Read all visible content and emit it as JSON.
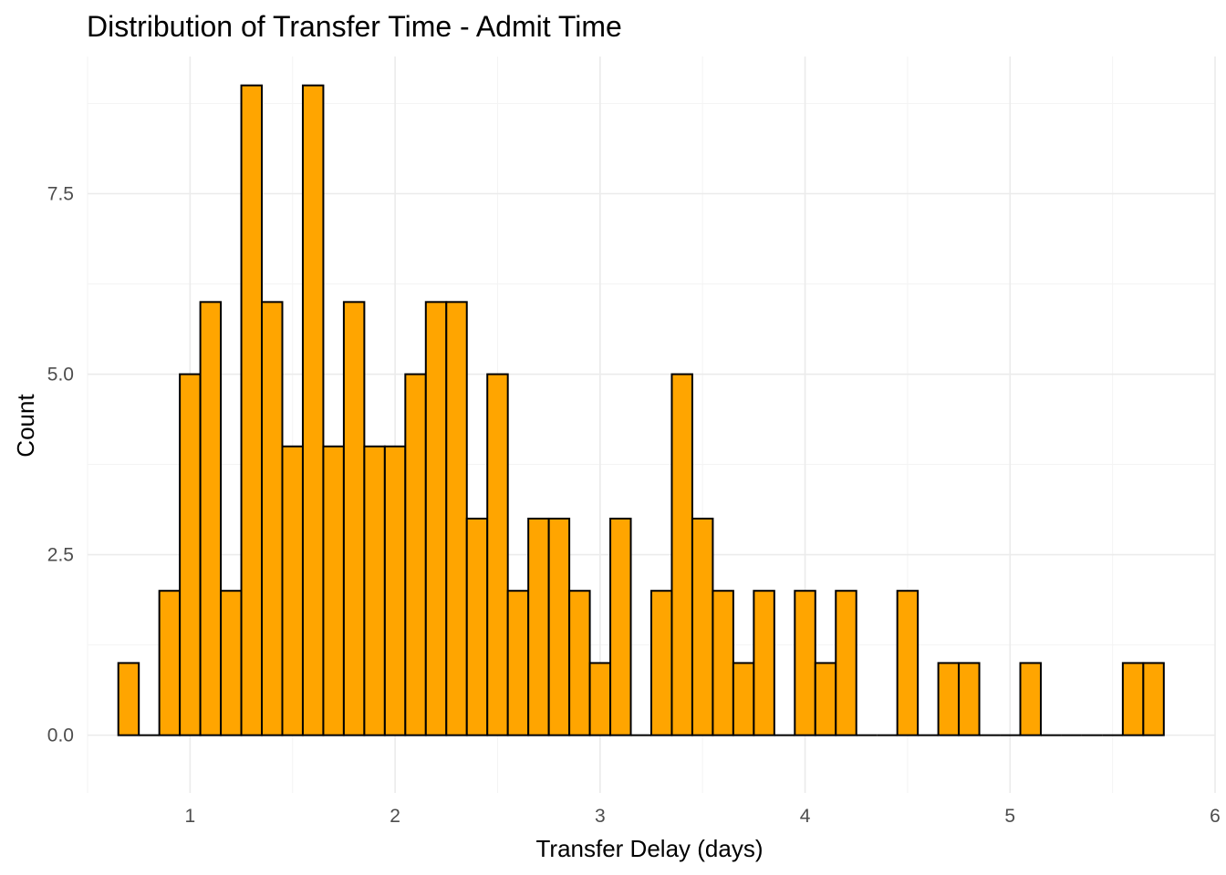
{
  "chart_data": {
    "type": "bar",
    "title": "Distribution of Transfer Time - Admit Time",
    "xlabel": "Transfer Delay (days)",
    "ylabel": "Count",
    "bin_width": 0.1,
    "bin_centers": [
      0.7,
      0.8,
      0.9,
      1.0,
      1.1,
      1.2,
      1.3,
      1.4,
      1.5,
      1.6,
      1.7,
      1.8,
      1.9,
      2.0,
      2.1,
      2.2,
      2.3,
      2.4,
      2.5,
      2.6,
      2.7,
      2.8,
      2.9,
      3.0,
      3.1,
      3.2,
      3.3,
      3.4,
      3.5,
      3.6,
      3.7,
      3.8,
      3.9,
      4.0,
      4.1,
      4.2,
      4.3,
      4.4,
      4.5,
      4.6,
      4.7,
      4.8,
      4.9,
      5.0,
      5.1,
      5.2,
      5.3,
      5.4,
      5.5,
      5.6,
      5.7
    ],
    "values": [
      1,
      0,
      2,
      5,
      6,
      2,
      9,
      6,
      4,
      9,
      4,
      6,
      4,
      4,
      5,
      6,
      6,
      3,
      5,
      2,
      3,
      3,
      2,
      1,
      3,
      0,
      2,
      5,
      3,
      2,
      1,
      2,
      0,
      2,
      1,
      2,
      0,
      0,
      2,
      0,
      1,
      1,
      0,
      0,
      1,
      0,
      0,
      0,
      0,
      1,
      1
    ],
    "xlim": [
      0.5,
      6.0
    ],
    "ylim": [
      -0.8,
      9.4
    ],
    "xticks": [
      1,
      2,
      3,
      4,
      5,
      6
    ],
    "xtick_labels": [
      "1",
      "2",
      "3",
      "4",
      "5",
      "6"
    ],
    "yticks": [
      0,
      2.5,
      5,
      7.5
    ],
    "ytick_labels": [
      "0.0",
      "2.5",
      "5.0",
      "7.5"
    ],
    "grid": true,
    "bar_fill": "#FFA500",
    "bar_outline": "#000000"
  }
}
